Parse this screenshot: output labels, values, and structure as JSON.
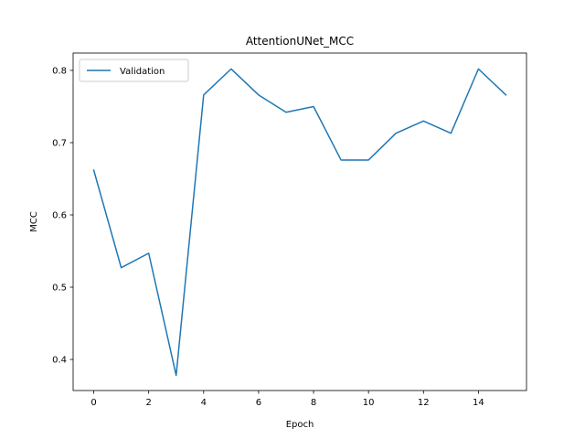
{
  "chart_data": {
    "type": "line",
    "title": "AttentionUNet_MCC",
    "xlabel": "Epoch",
    "ylabel": "MCC",
    "xlim": [
      -0.75,
      15.75
    ],
    "ylim": [
      0.357,
      0.824
    ],
    "xticks": [
      0,
      2,
      4,
      6,
      8,
      10,
      12,
      14
    ],
    "yticks": [
      0.4,
      0.5,
      0.6,
      0.7,
      0.8
    ],
    "xtick_labels": [
      "0",
      "2",
      "4",
      "6",
      "8",
      "10",
      "12",
      "14"
    ],
    "ytick_labels": [
      "0.4",
      "0.5",
      "0.6",
      "0.7",
      "0.8"
    ],
    "grid": false,
    "legend": {
      "position": "top-left"
    },
    "x": [
      0,
      1,
      2,
      3,
      4,
      5,
      6,
      7,
      8,
      9,
      10,
      11,
      12,
      13,
      14,
      15
    ],
    "series": [
      {
        "name": "Validation",
        "color": "#1f77b4",
        "values": [
          0.662,
          0.527,
          0.547,
          0.378,
          0.766,
          0.802,
          0.766,
          0.742,
          0.75,
          0.676,
          0.676,
          0.713,
          0.73,
          0.713,
          0.802,
          0.766
        ]
      }
    ]
  }
}
